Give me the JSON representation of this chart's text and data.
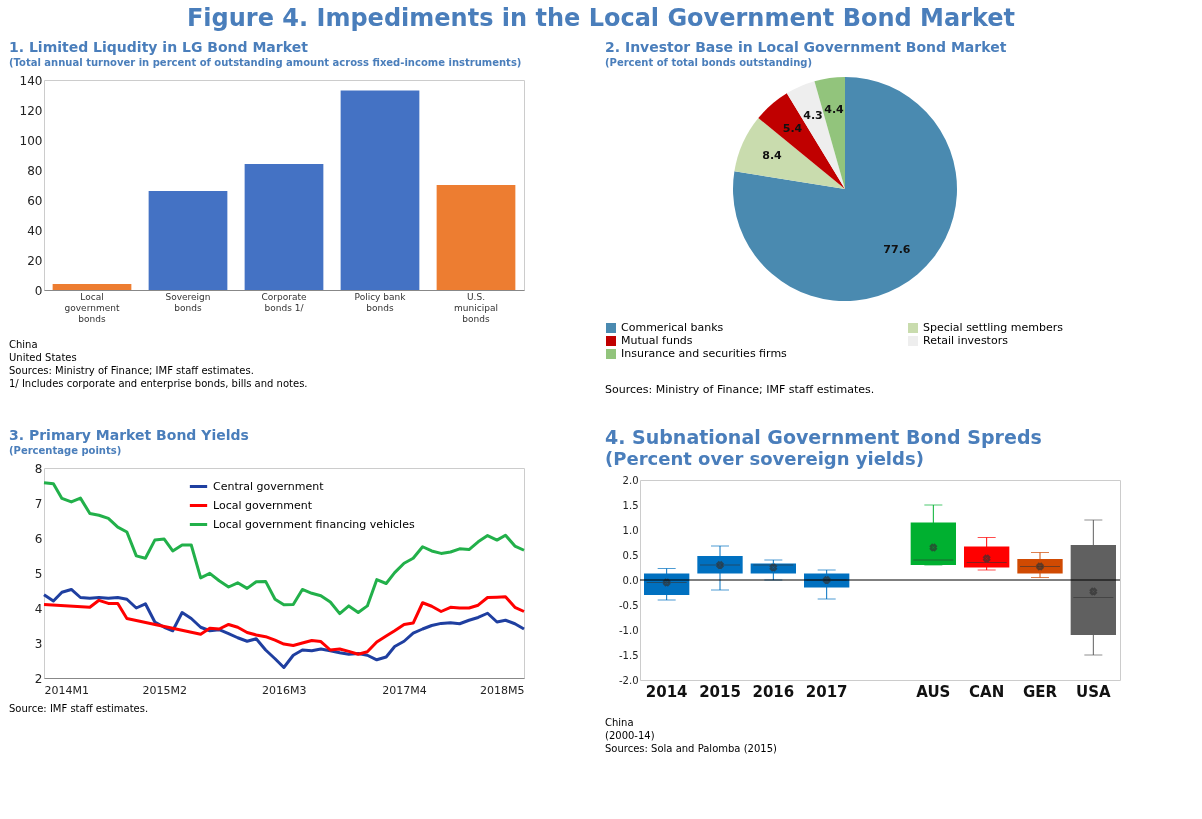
{
  "chart_data": [
    {
      "type": "other",
      "title": "Figure 4. Impediments in the Local Government Bond Market"
    },
    {
      "type": "bar",
      "title": "1. Limited Liqudity in LG Bond Market",
      "subtitle": "(Total annual turnover in percent of outstanding amount across fixed-income instruments)",
      "categories": [
        "Local government bonds",
        "Sovereign bonds",
        "Corporate bonds 1/",
        "Policy bank bonds",
        null,
        "U.S. municipal bonds"
      ],
      "values": [
        4,
        66,
        84,
        133,
        null,
        70
      ],
      "colors": [
        "#ed7d31",
        "#4472c4",
        "#4472c4",
        "#4472c4",
        null,
        "#ed7d31"
      ],
      "ylim": [
        0,
        140
      ],
      "yticks": [
        0,
        20,
        40,
        60,
        80,
        100,
        120,
        140
      ],
      "annotations": [
        "China",
        "United States",
        "Sources: Ministry of Finance; IMF staff estimates.",
        "1/ Includes corporate and enterprise bonds, bills and notes."
      ]
    },
    {
      "type": "pie",
      "title": "2. Investor Base in Local Government Bond Market",
      "subtitle": "(Percent of total bonds outstanding)",
      "categories": [
        "Commerical banks",
        "Special settling members",
        "Mutual funds",
        "Retail investors",
        "Insurance and securities firms"
      ],
      "values": [
        77.6,
        8.4,
        5.4,
        4.3,
        4.4
      ],
      "colors": [
        "#4a8ab0",
        "#c9dcae",
        "#c00000",
        "#eeeeee",
        "#92c47c"
      ],
      "data_labels": true,
      "legend": "bottom",
      "annotations": [
        "Sources: Ministry of Finance; IMF staff estimates."
      ]
    },
    {
      "type": "line",
      "title": "3. Primary Market Bond Yields",
      "subtitle": "(Percentage points)",
      "x": [
        "2014-01",
        "2014-02",
        "2014-03",
        "2014-04",
        "2014-05",
        "2014-06",
        "2014-07",
        "2014-08",
        "2014-09",
        "2014-10",
        "2014-11",
        "2014-12",
        "2015-01",
        "2015-02",
        "2015-03",
        "2015-04",
        "2015-05",
        "2015-06",
        "2015-07",
        "2015-08",
        "2015-09",
        "2015-10",
        "2015-11",
        "2015-12",
        "2016-01",
        "2016-02",
        "2016-03",
        "2016-04",
        "2016-05",
        "2016-06",
        "2016-07",
        "2016-08",
        "2016-09",
        "2016-10",
        "2016-11",
        "2016-12",
        "2017-01",
        "2017-02",
        "2017-03",
        "2017-04",
        "2017-05",
        "2017-06",
        "2017-07",
        "2017-08",
        "2017-09",
        "2017-10",
        "2017-11",
        "2017-12",
        "2018-01",
        "2018-02",
        "2018-03",
        "2018-04",
        "2018-05"
      ],
      "series": [
        {
          "name": "Central government",
          "color": "#1f3fa0",
          "values": [
            4.38,
            4.2,
            4.45,
            4.53,
            4.3,
            4.28,
            4.3,
            4.28,
            4.3,
            4.25,
            4.0,
            4.12,
            3.6,
            3.45,
            3.35,
            3.87,
            3.7,
            3.45,
            3.35,
            3.38,
            3.27,
            3.15,
            3.05,
            3.12,
            2.8,
            2.55,
            2.3,
            2.65,
            2.8,
            2.78,
            2.83,
            2.78,
            2.72,
            2.68,
            2.7,
            2.65,
            2.52,
            2.6,
            2.9,
            3.05,
            3.28,
            3.4,
            3.5,
            3.56,
            3.58,
            3.55,
            3.65,
            3.73,
            3.85,
            3.6,
            3.65,
            3.55,
            3.4
          ]
        },
        {
          "name": "Local government",
          "color": "#ff0000",
          "values": [
            4.1,
            null,
            null,
            null,
            null,
            4.02,
            4.22,
            4.13,
            4.13,
            3.7,
            null,
            null,
            null,
            null,
            null,
            null,
            null,
            3.25,
            3.42,
            3.4,
            3.53,
            3.45,
            3.3,
            3.23,
            3.18,
            3.08,
            2.97,
            2.93,
            3.0,
            3.07,
            3.04,
            2.8,
            2.83,
            2.76,
            2.68,
            2.75,
            3.03,
            3.2,
            3.35,
            3.53,
            3.57,
            4.15,
            4.05,
            3.9,
            4.02,
            4.0,
            4.0,
            4.08,
            4.3,
            4.31,
            4.32,
            4.02,
            3.9
          ]
        },
        {
          "name": "Local government financing vehicles",
          "color": "#22b04a",
          "values": [
            7.58,
            7.55,
            7.13,
            7.03,
            7.14,
            6.7,
            6.65,
            6.56,
            6.31,
            6.17,
            5.49,
            5.42,
            5.94,
            5.97,
            5.63,
            5.8,
            5.8,
            4.86,
            4.99,
            4.78,
            4.6,
            4.72,
            4.56,
            4.75,
            4.76,
            4.25,
            4.09,
            4.1,
            4.53,
            4.42,
            4.35,
            4.17,
            3.84,
            4.06,
            3.87,
            4.06,
            4.81,
            4.7,
            5.01,
            5.28,
            5.42,
            5.75,
            5.63,
            5.56,
            5.6,
            5.69,
            5.67,
            5.89,
            6.07,
            5.94,
            6.08,
            5.77,
            5.65
          ]
        }
      ],
      "xlim": [
        "2014-01",
        "2018-05"
      ],
      "xticks": [
        {
          "value": "2014-01",
          "label": "2014M1"
        },
        {
          "value": "2015-02",
          "label": "2015M2"
        },
        {
          "value": "2016-03",
          "label": "2016M3"
        },
        {
          "value": "2017-04",
          "label": "2017M4"
        },
        {
          "value": "2018-05",
          "label": "2018M5"
        }
      ],
      "ylim": [
        2,
        8
      ],
      "yticks": [
        2,
        3,
        4,
        5,
        6,
        7,
        8
      ],
      "legend": "top",
      "line_style": "solid",
      "annotations": [
        "Source: IMF staff estimates."
      ]
    },
    {
      "type": "box",
      "title": "4. Subnational Government Bond Spreds",
      "subtitle": "(Percent over sovereign yields)",
      "categories": [
        "2014",
        "2015",
        "2016",
        "2017",
        null,
        "AUS",
        "CAN",
        "GER",
        "USA"
      ],
      "boxes": [
        {
          "low": -0.4,
          "q1": -0.3,
          "median": -0.05,
          "q3": 0.13,
          "high": 0.23,
          "mean": -0.05
        },
        {
          "low": -0.2,
          "q1": 0.13,
          "median": 0.3,
          "q3": 0.48,
          "high": 0.68,
          "mean": 0.3
        },
        {
          "low": 0.0,
          "q1": 0.13,
          "median": 0.3,
          "q3": 0.33,
          "high": 0.4,
          "mean": 0.25
        },
        {
          "low": -0.38,
          "q1": -0.15,
          "median": 0.0,
          "q3": 0.13,
          "high": 0.2,
          "mean": 0.0
        },
        null,
        {
          "low": 0.3,
          "q1": 0.3,
          "median": 0.4,
          "q3": 1.15,
          "high": 1.5,
          "mean": 0.65
        },
        {
          "low": 0.2,
          "q1": 0.25,
          "median": 0.35,
          "q3": 0.67,
          "high": 0.85,
          "mean": 0.43
        },
        {
          "low": 0.05,
          "q1": 0.13,
          "median": 0.27,
          "q3": 0.42,
          "high": 0.55,
          "mean": 0.27
        },
        {
          "low": -1.5,
          "q1": -1.1,
          "median": -0.35,
          "q3": 0.7,
          "high": 1.2,
          "mean": -0.23
        }
      ],
      "colors": [
        "#0070c0",
        "#0070c0",
        "#0070c0",
        "#0070c0",
        null,
        "#00b030",
        "#ff0000",
        "#d04a02",
        "#606060"
      ],
      "ylim": [
        -2,
        2
      ],
      "yticks": [
        {
          "value": -2,
          "label": "-2.0"
        },
        {
          "value": -1.5,
          "label": "-1.5"
        },
        {
          "value": -1,
          "label": "-1.0"
        },
        {
          "value": -0.5,
          "label": "-0.5"
        },
        {
          "value": 0,
          "label": "0.0"
        },
        {
          "value": 0.5,
          "label": "0.5"
        },
        {
          "value": 1,
          "label": "1.0"
        },
        {
          "value": 1.5,
          "label": "1.5"
        },
        {
          "value": 2,
          "label": "2.0"
        }
      ],
      "ref_lines": [
        {
          "axis": "y",
          "value": 0,
          "color": "#000000"
        }
      ],
      "annotations": [
        "China",
        "(2000-14)",
        "Sources: Sola and Palomba (2015)"
      ]
    }
  ]
}
